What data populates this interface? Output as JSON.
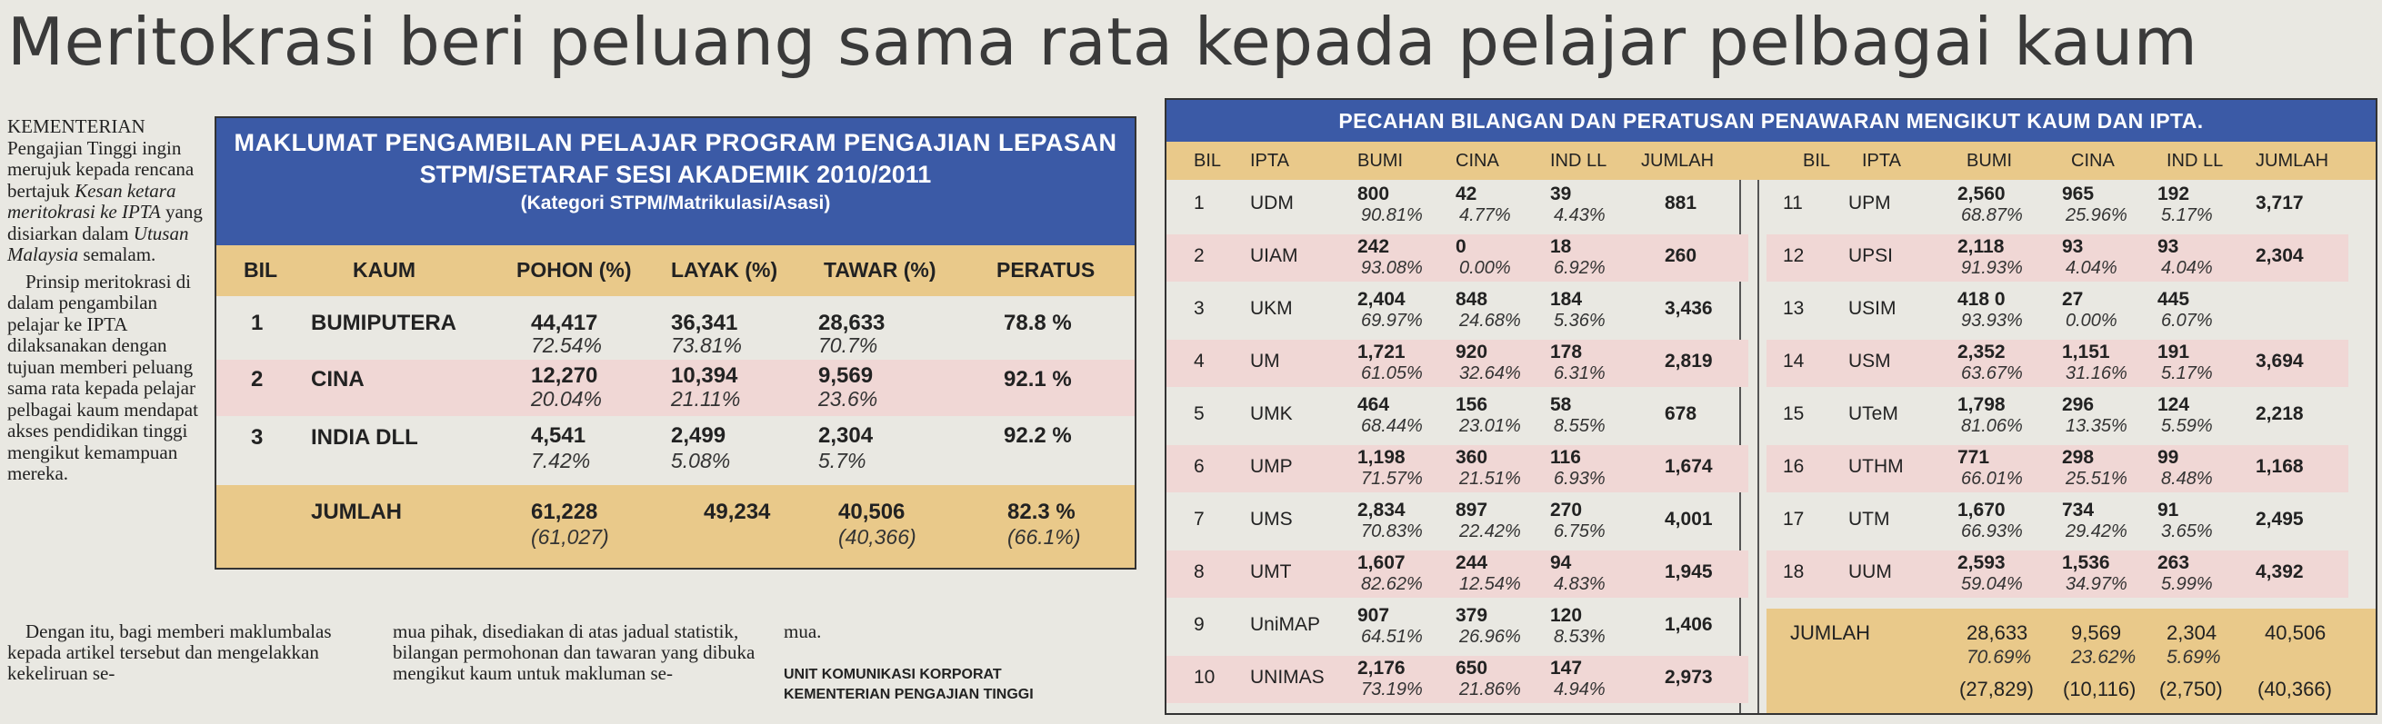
{
  "headline": "Meritokrasi beri peluang sama rata kepada pelajar pelbagai kaum",
  "article": {
    "p1_a": "KEMENTERIAN Pengajian Tinggi ingin merujuk kepada rencana bertajuk ",
    "p1_italic1": "Kesan ketara meritokrasi ke IPTA",
    "p1_b": " yang disiarkan dalam ",
    "p1_italic2": "Utusan Malaysia",
    "p1_c": " semalam.",
    "p2": "Prinsip meritokrasi di dalam pengambilan pelajar ke IPTA dilaksanakan dengan tujuan memberi peluang sama rata kepada pelajar pelbagai kaum mendapat akses pendidikan tinggi mengikut kemampuan mereka.",
    "p3_col1": "Dengan itu, bagi memberi maklumbalas kepada artikel tersebut dan mengelakkan kekeliruan se-",
    "p3_col2": "mua pihak, disediakan di atas jadual statistik, bilangan permohonan dan tawaran yang dibuka mengikut kaum untuk makluman se-",
    "p3_col3": "mua.",
    "credit_l1": "UNIT KOMUNIKASI KORPORAT",
    "credit_l2": "KEMENTERIAN PENGAJIAN TINGGI"
  },
  "table1": {
    "title_l1": "MAKLUMAT PENGAMBILAN PELAJAR PROGRAM PENGAJIAN LEPASAN",
    "title_l2": "STPM/SETARAF SESI AKADEMIK 2010/2011",
    "title_l3": "(Kategori STPM/Matrikulasi/Asasi)",
    "headers": [
      "BIL",
      "KAUM",
      "POHON (%)",
      "LAYAK (%)",
      "TAWAR (%)",
      "PERATUS"
    ],
    "rows": [
      {
        "bil": "1",
        "kaum": "BUMIPUTERA",
        "pohon": "44,417",
        "pohon_pct": "72.54%",
        "layak": "36,341",
        "layak_pct": "73.81%",
        "tawar": "28,633",
        "tawar_pct": "70.7%",
        "peratus": "78.8 %"
      },
      {
        "bil": "2",
        "kaum": "CINA",
        "pohon": "12,270",
        "pohon_pct": "20.04%",
        "layak": "10,394",
        "layak_pct": "21.11%",
        "tawar": "9,569",
        "tawar_pct": "23.6%",
        "peratus": "92.1 %"
      },
      {
        "bil": "3",
        "kaum": "INDIA DLL",
        "pohon": "4,541",
        "pohon_pct": "7.42%",
        "layak": "2,499",
        "layak_pct": "5.08%",
        "tawar": "2,304",
        "tawar_pct": "5.7%",
        "peratus": "92.2 %"
      }
    ],
    "total": {
      "label": "JUMLAH",
      "pohon": "61,228",
      "pohon_sub": "(61,027)",
      "layak": "49,234",
      "tawar": "40,506",
      "tawar_sub": "(40,366)",
      "peratus": "82.3 %",
      "peratus_sub": "(66.1%)"
    }
  },
  "table2": {
    "title": "PECAHAN BILANGAN DAN PERATUSAN PENAWARAN MENGIKUT KAUM DAN IPTA.",
    "headers": [
      "BIL",
      "IPTA",
      "BUMI",
      "CINA",
      "IND LL",
      "JUMLAH"
    ],
    "left": [
      {
        "bil": "1",
        "ipta": "UDM",
        "bumi": "800",
        "bumi_pct": "90.81%",
        "cina": "42",
        "cina_pct": "4.77%",
        "ind": "39",
        "ind_pct": "4.43%",
        "jumlah": "881"
      },
      {
        "bil": "2",
        "ipta": "UIAM",
        "bumi": "242",
        "bumi_pct": "93.08%",
        "cina": "0",
        "cina_pct": "0.00%",
        "ind": "18",
        "ind_pct": "6.92%",
        "jumlah": "260"
      },
      {
        "bil": "3",
        "ipta": "UKM",
        "bumi": "2,404",
        "bumi_pct": "69.97%",
        "cina": "848",
        "cina_pct": "24.68%",
        "ind": "184",
        "ind_pct": "5.36%",
        "jumlah": "3,436"
      },
      {
        "bil": "4",
        "ipta": "UM",
        "bumi": "1,721",
        "bumi_pct": "61.05%",
        "cina": "920",
        "cina_pct": "32.64%",
        "ind": "178",
        "ind_pct": "6.31%",
        "jumlah": "2,819"
      },
      {
        "bil": "5",
        "ipta": "UMK",
        "bumi": "464",
        "bumi_pct": "68.44%",
        "cina": "156",
        "cina_pct": "23.01%",
        "ind": "58",
        "ind_pct": "8.55%",
        "jumlah": "678"
      },
      {
        "bil": "6",
        "ipta": "UMP",
        "bumi": "1,198",
        "bumi_pct": "71.57%",
        "cina": "360",
        "cina_pct": "21.51%",
        "ind": "116",
        "ind_pct": "6.93%",
        "jumlah": "1,674"
      },
      {
        "bil": "7",
        "ipta": "UMS",
        "bumi": "2,834",
        "bumi_pct": "70.83%",
        "cina": "897",
        "cina_pct": "22.42%",
        "ind": "270",
        "ind_pct": "6.75%",
        "jumlah": "4,001"
      },
      {
        "bil": "8",
        "ipta": "UMT",
        "bumi": "1,607",
        "bumi_pct": "82.62%",
        "cina": "244",
        "cina_pct": "12.54%",
        "ind": "94",
        "ind_pct": "4.83%",
        "jumlah": "1,945"
      },
      {
        "bil": "9",
        "ipta": "UniMAP",
        "bumi": "907",
        "bumi_pct": "64.51%",
        "cina": "379",
        "cina_pct": "26.96%",
        "ind": "120",
        "ind_pct": "8.53%",
        "jumlah": "1,406"
      },
      {
        "bil": "10",
        "ipta": "UNIMAS",
        "bumi": "2,176",
        "bumi_pct": "73.19%",
        "cina": "650",
        "cina_pct": "21.86%",
        "ind": "147",
        "ind_pct": "4.94%",
        "jumlah": "2,973"
      }
    ],
    "right": [
      {
        "bil": "11",
        "ipta": "UPM",
        "bumi": "2,560",
        "bumi_pct": "68.87%",
        "cina": "965",
        "cina_pct": "25.96%",
        "ind": "192",
        "ind_pct": "5.17%",
        "jumlah": "3,717"
      },
      {
        "bil": "12",
        "ipta": "UPSI",
        "bumi": "2,118",
        "bumi_pct": "91.93%",
        "cina": "93",
        "cina_pct": "4.04%",
        "ind": "93",
        "ind_pct": "4.04%",
        "jumlah": "2,304"
      },
      {
        "bil": "13",
        "ipta": "USIM",
        "bumi": "418 0",
        "bumi_pct": "93.93%",
        "cina": "27",
        "cina_pct": "0.00%",
        "ind": "445",
        "ind_pct": "6.07%",
        "jumlah": ""
      },
      {
        "bil": "14",
        "ipta": "USM",
        "bumi": "2,352",
        "bumi_pct": "63.67%",
        "cina": "1,151",
        "cina_pct": "31.16%",
        "ind": "191",
        "ind_pct": "5.17%",
        "jumlah": "3,694"
      },
      {
        "bil": "15",
        "ipta": "UTeM",
        "bumi": "1,798",
        "bumi_pct": "81.06%",
        "cina": "296",
        "cina_pct": "13.35%",
        "ind": "124",
        "ind_pct": "5.59%",
        "jumlah": "2,218"
      },
      {
        "bil": "16",
        "ipta": "UTHM",
        "bumi": "771",
        "bumi_pct": "66.01%",
        "cina": "298",
        "cina_pct": "25.51%",
        "ind": "99",
        "ind_pct": "8.48%",
        "jumlah": "1,168"
      },
      {
        "bil": "17",
        "ipta": "UTM",
        "bumi": "1,670",
        "bumi_pct": "66.93%",
        "cina": "734",
        "cina_pct": "29.42%",
        "ind": "91",
        "ind_pct": "3.65%",
        "jumlah": "2,495"
      },
      {
        "bil": "18",
        "ipta": "UUM",
        "bumi": "2,593",
        "bumi_pct": "59.04%",
        "cina": "1,536",
        "cina_pct": "34.97%",
        "ind": "263",
        "ind_pct": "5.99%",
        "jumlah": "4,392"
      }
    ],
    "total": {
      "label": "JUMLAH",
      "bumi": "28,633",
      "bumi_pct": "70.69%",
      "bumi_sub": "(27,829)",
      "cina": "9,569",
      "cina_pct": "23.62%",
      "cina_sub": "(10,116)",
      "ind": "2,304",
      "ind_pct": "5.69%",
      "ind_sub": "(2,750)",
      "jumlah": "40,506",
      "jumlah_sub": "(40,366)"
    }
  }
}
